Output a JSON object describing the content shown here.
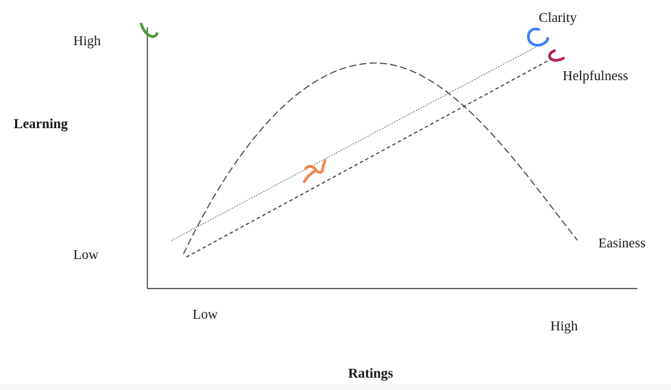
{
  "y_axis": {
    "title": "Learning",
    "high_label": "High",
    "low_label": "Low"
  },
  "x_axis": {
    "title": "Ratings",
    "low_label": "Low",
    "high_label": "High"
  },
  "lines": {
    "clarity": "Clarity",
    "helpfulness": "Helpfulness",
    "easiness": "Easiness"
  },
  "annotations": {
    "axis_corner_mark": {
      "shape": "check",
      "color": "#4c9a3a"
    },
    "clarity_mark": {
      "shape": "c",
      "color": "#3b82f6"
    },
    "helpfulness_mark": {
      "shape": "c",
      "color": "#b3245a"
    },
    "middle_mark": {
      "shape": "tilde",
      "color": "#f0854c"
    }
  },
  "colors": {
    "axis": "#3a3a3a",
    "curve": "#4a4a4a",
    "text": "#1a1a1a"
  }
}
